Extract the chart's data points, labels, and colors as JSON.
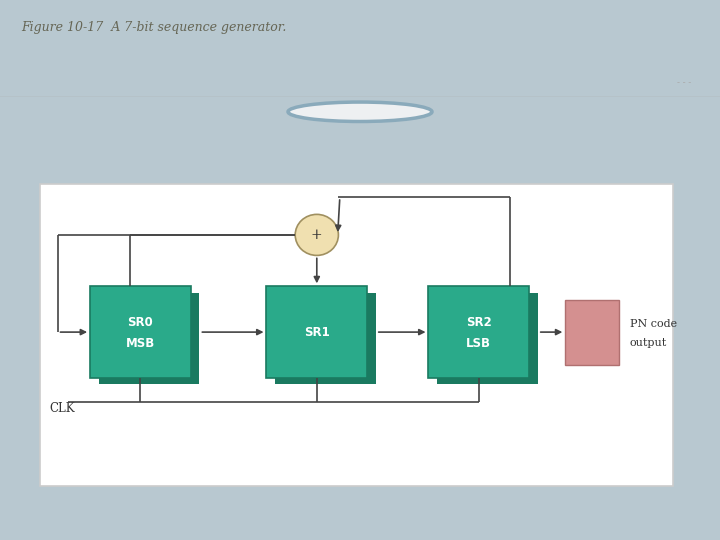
{
  "title": "Figure 10-17  A 7-bit sequence generator.",
  "bg_outer": "#b8c8d0",
  "bg_top_strip": "#eef0f2",
  "bg_inner_box": "#ffffff",
  "block_color": "#2aaa8a",
  "block_shadow": "#1a7a60",
  "pn_block_color": "#d49090",
  "adder_color": "#f0e0b0",
  "adder_edge": "#a09060",
  "line_color": "#444444",
  "text_color": "#333333",
  "title_color": "#666655",
  "top_circle_edge": "#8aaabb",
  "sr0_label": [
    "SR0",
    "MSB"
  ],
  "sr1_label": [
    "SR1"
  ],
  "sr2_label": [
    "SR2",
    "LSB"
  ],
  "pn_label": [
    "PN code",
    "output"
  ],
  "clk_label": "CLK",
  "adder_label": "+"
}
